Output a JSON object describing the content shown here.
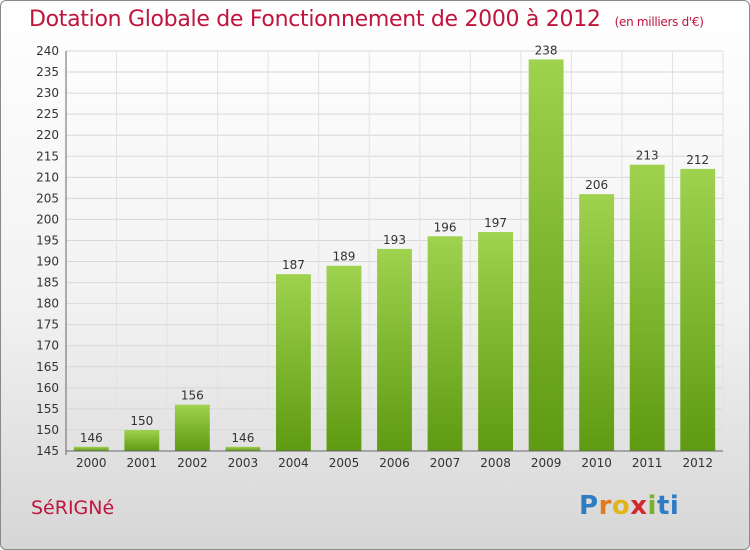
{
  "title": "Dotation Globale de Fonctionnement de 2000 à 2012",
  "unit_note": "(en milliers d'€)",
  "commune": "SéRIGNé",
  "logo": {
    "text": "Proxiti",
    "colors": [
      "#2e7cc4",
      "#e07b1c",
      "#e0b51c",
      "#d2282e",
      "#7ab02a",
      "#2e7cc4"
    ]
  },
  "colors": {
    "bar_top": "#9fd24f",
    "bar_bottom": "#5e9a12",
    "title": "#c0143c"
  },
  "chart_data": {
    "type": "bar",
    "categories": [
      "2000",
      "2001",
      "2002",
      "2003",
      "2004",
      "2005",
      "2006",
      "2007",
      "2008",
      "2009",
      "2010",
      "2011",
      "2012"
    ],
    "values": [
      146,
      150,
      156,
      146,
      187,
      189,
      193,
      196,
      197,
      238,
      206,
      213,
      212
    ],
    "ylim": [
      145,
      240
    ],
    "yticks": [
      145,
      150,
      155,
      160,
      165,
      170,
      175,
      180,
      185,
      190,
      195,
      200,
      205,
      210,
      215,
      220,
      225,
      230,
      235,
      240
    ],
    "grid": true
  }
}
